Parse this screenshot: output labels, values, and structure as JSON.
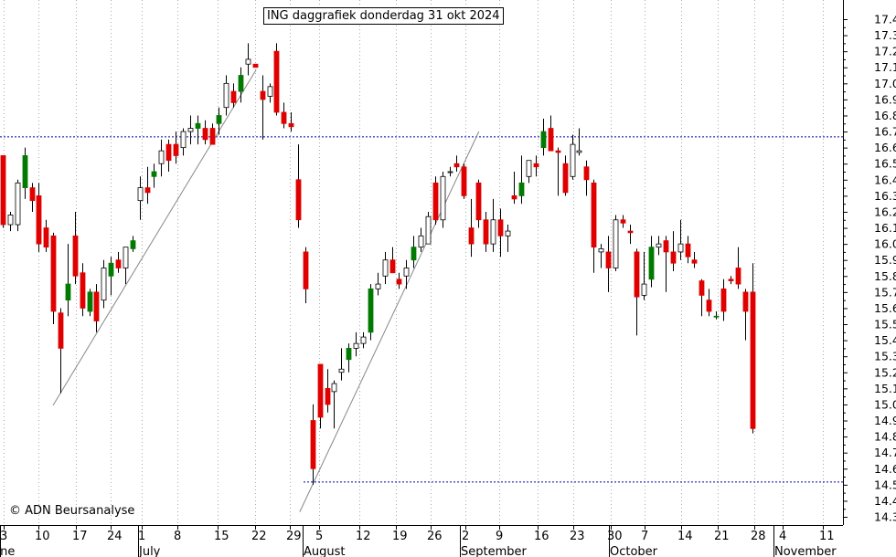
{
  "chart_data": {
    "type": "candlestick",
    "title": "ING daggrafiek donderdag 31 okt 2024",
    "copyright": "© ADN Beursanalyse",
    "ylim": [
      14.25,
      17.5
    ],
    "y_ticks": [
      "17.4",
      "17.3",
      "17.2",
      "17.1",
      "17.0",
      "16.9",
      "16.8",
      "16.7",
      "16.6",
      "16.5",
      "16.4",
      "16.3",
      "16.2",
      "16.1",
      "16.0",
      "15.9",
      "15.8",
      "15.7",
      "15.6",
      "15.5",
      "15.4",
      "15.3",
      "15.2",
      "15.1",
      "15.0",
      "14.9",
      "14.8",
      "14.7",
      "14.6",
      "14.5",
      "14.4",
      "14.3"
    ],
    "x_ticks": [
      "3",
      "10",
      "17",
      "24",
      "1",
      "8",
      "15",
      "22",
      "29",
      "5",
      "12",
      "19",
      "26",
      "2",
      "9",
      "16",
      "23",
      "30",
      "7",
      "14",
      "21",
      "28",
      "4",
      "11"
    ],
    "months": [
      "June",
      "July",
      "August",
      "September",
      "October",
      "November"
    ],
    "colors": {
      "up": "#007a00",
      "down": "#e00000",
      "hollow": "#ffffff",
      "support": "#0000aa",
      "trend": "#888888",
      "grid": "#aaaaaa"
    },
    "horizontal_lines": [
      16.67,
      14.52
    ],
    "candles": [
      {
        "o": 16.55,
        "h": 16.55,
        "l": 16.1,
        "c": 16.12
      },
      {
        "o": 16.12,
        "h": 16.2,
        "l": 16.08,
        "c": 16.18
      },
      {
        "o": 16.12,
        "h": 16.4,
        "l": 16.08,
        "c": 16.38
      },
      {
        "o": 16.35,
        "h": 16.6,
        "l": 16.28,
        "c": 16.55
      },
      {
        "o": 16.35,
        "h": 16.38,
        "l": 16.2,
        "c": 16.27
      },
      {
        "o": 16.3,
        "h": 16.38,
        "l": 15.95,
        "c": 16.0
      },
      {
        "o": 16.1,
        "h": 16.15,
        "l": 15.95,
        "c": 15.98
      },
      {
        "o": 16.05,
        "h": 16.07,
        "l": 15.5,
        "c": 15.58
      },
      {
        "o": 15.57,
        "h": 15.6,
        "l": 15.07,
        "c": 15.35
      },
      {
        "o": 15.65,
        "h": 16.0,
        "l": 15.55,
        "c": 15.75
      },
      {
        "o": 16.05,
        "h": 16.2,
        "l": 15.75,
        "c": 15.8
      },
      {
        "o": 15.82,
        "h": 15.88,
        "l": 15.55,
        "c": 15.6
      },
      {
        "o": 15.58,
        "h": 15.72,
        "l": 15.55,
        "c": 15.7
      },
      {
        "o": 15.7,
        "h": 15.75,
        "l": 15.45,
        "c": 15.52
      },
      {
        "o": 15.65,
        "h": 15.9,
        "l": 15.6,
        "c": 15.85
      },
      {
        "o": 15.8,
        "h": 15.92,
        "l": 15.68,
        "c": 15.88
      },
      {
        "o": 15.9,
        "h": 15.95,
        "l": 15.82,
        "c": 15.85
      },
      {
        "o": 15.85,
        "h": 15.98,
        "l": 15.75,
        "c": 15.98
      },
      {
        "o": 15.97,
        "h": 16.05,
        "l": 15.95,
        "c": 16.02
      },
      {
        "o": 16.27,
        "h": 16.42,
        "l": 16.15,
        "c": 16.35
      },
      {
        "o": 16.35,
        "h": 16.48,
        "l": 16.25,
        "c": 16.32
      },
      {
        "o": 16.42,
        "h": 16.5,
        "l": 16.35,
        "c": 16.45
      },
      {
        "o": 16.5,
        "h": 16.65,
        "l": 16.42,
        "c": 16.58
      },
      {
        "o": 16.62,
        "h": 16.65,
        "l": 16.45,
        "c": 16.52
      },
      {
        "o": 16.62,
        "h": 16.7,
        "l": 16.5,
        "c": 16.55
      },
      {
        "o": 16.6,
        "h": 16.72,
        "l": 16.55,
        "c": 16.7
      },
      {
        "o": 16.7,
        "h": 16.8,
        "l": 16.62,
        "c": 16.72
      },
      {
        "o": 16.72,
        "h": 16.8,
        "l": 16.62,
        "c": 16.75
      },
      {
        "o": 16.72,
        "h": 16.77,
        "l": 16.62,
        "c": 16.65
      },
      {
        "o": 16.72,
        "h": 16.75,
        "l": 16.62,
        "c": 16.62
      },
      {
        "o": 16.75,
        "h": 16.85,
        "l": 16.68,
        "c": 16.8
      },
      {
        "o": 16.85,
        "h": 17.05,
        "l": 16.8,
        "c": 17.0
      },
      {
        "o": 16.95,
        "h": 17.0,
        "l": 16.85,
        "c": 16.88
      },
      {
        "o": 16.95,
        "h": 17.1,
        "l": 16.88,
        "c": 17.05
      },
      {
        "o": 17.12,
        "h": 17.25,
        "l": 17.05,
        "c": 17.15
      },
      {
        "o": 17.12,
        "h": 17.12,
        "l": 17.1,
        "c": 17.1
      },
      {
        "o": 16.95,
        "h": 17.05,
        "l": 16.65,
        "c": 16.9
      },
      {
        "o": 16.92,
        "h": 17.0,
        "l": 16.88,
        "c": 16.98
      },
      {
        "o": 17.2,
        "h": 17.25,
        "l": 16.8,
        "c": 16.82
      },
      {
        "o": 16.82,
        "h": 16.88,
        "l": 16.72,
        "c": 16.75
      },
      {
        "o": 16.75,
        "h": 16.82,
        "l": 16.7,
        "c": 16.73
      },
      {
        "o": 16.4,
        "h": 16.62,
        "l": 16.1,
        "c": 16.15
      },
      {
        "o": 15.95,
        "h": 15.98,
        "l": 15.63,
        "c": 15.72
      },
      {
        "o": 14.9,
        "h": 15.0,
        "l": 14.5,
        "c": 14.6
      },
      {
        "o": 15.25,
        "h": 15.25,
        "l": 14.85,
        "c": 14.92
      },
      {
        "o": 15.1,
        "h": 15.22,
        "l": 14.95,
        "c": 15.0
      },
      {
        "o": 15.08,
        "h": 15.15,
        "l": 14.85,
        "c": 15.13
      },
      {
        "o": 15.2,
        "h": 15.35,
        "l": 15.15,
        "c": 15.22
      },
      {
        "o": 15.28,
        "h": 15.38,
        "l": 15.2,
        "c": 15.35
      },
      {
        "o": 15.35,
        "h": 15.45,
        "l": 15.3,
        "c": 15.38
      },
      {
        "o": 15.38,
        "h": 15.45,
        "l": 15.35,
        "c": 15.42
      },
      {
        "o": 15.45,
        "h": 15.75,
        "l": 15.4,
        "c": 15.72
      },
      {
        "o": 15.72,
        "h": 15.82,
        "l": 15.68,
        "c": 15.75
      },
      {
        "o": 15.8,
        "h": 15.95,
        "l": 15.75,
        "c": 15.9
      },
      {
        "o": 15.9,
        "h": 15.98,
        "l": 15.85,
        "c": 15.82
      },
      {
        "o": 15.78,
        "h": 15.82,
        "l": 15.72,
        "c": 15.75
      },
      {
        "o": 15.8,
        "h": 15.9,
        "l": 15.72,
        "c": 15.85
      },
      {
        "o": 15.9,
        "h": 16.05,
        "l": 15.85,
        "c": 15.98
      },
      {
        "o": 15.98,
        "h": 16.1,
        "l": 15.95,
        "c": 16.05
      },
      {
        "o": 16.0,
        "h": 16.2,
        "l": 16.0,
        "c": 16.17
      },
      {
        "o": 16.38,
        "h": 16.42,
        "l": 16.12,
        "c": 16.15
      },
      {
        "o": 16.15,
        "h": 16.45,
        "l": 16.1,
        "c": 16.42
      },
      {
        "o": 16.45,
        "h": 16.48,
        "l": 16.42,
        "c": 16.45
      },
      {
        "o": 16.5,
        "h": 16.55,
        "l": 16.45,
        "c": 16.48
      },
      {
        "o": 16.48,
        "h": 16.5,
        "l": 16.28,
        "c": 16.3
      },
      {
        "o": 16.1,
        "h": 16.28,
        "l": 15.92,
        "c": 16.0
      },
      {
        "o": 16.38,
        "h": 16.4,
        "l": 16.1,
        "c": 16.15
      },
      {
        "o": 16.15,
        "h": 16.2,
        "l": 15.95,
        "c": 16.0
      },
      {
        "o": 16.0,
        "h": 16.28,
        "l": 15.95,
        "c": 16.15
      },
      {
        "o": 16.15,
        "h": 16.22,
        "l": 15.92,
        "c": 16.05
      },
      {
        "o": 16.05,
        "h": 16.12,
        "l": 15.95,
        "c": 16.08
      },
      {
        "o": 16.3,
        "h": 16.45,
        "l": 16.25,
        "c": 16.28
      },
      {
        "o": 16.3,
        "h": 16.55,
        "l": 16.25,
        "c": 16.38
      },
      {
        "o": 16.42,
        "h": 16.5,
        "l": 16.38,
        "c": 16.52
      },
      {
        "o": 16.5,
        "h": 16.55,
        "l": 16.42,
        "c": 16.48
      },
      {
        "o": 16.6,
        "h": 16.78,
        "l": 16.55,
        "c": 16.7
      },
      {
        "o": 16.72,
        "h": 16.8,
        "l": 16.6,
        "c": 16.58
      },
      {
        "o": 16.58,
        "h": 16.6,
        "l": 16.3,
        "c": 16.57
      },
      {
        "o": 16.5,
        "h": 16.55,
        "l": 16.3,
        "c": 16.32
      },
      {
        "o": 16.42,
        "h": 16.68,
        "l": 16.4,
        "c": 16.62
      },
      {
        "o": 16.57,
        "h": 16.72,
        "l": 16.55,
        "c": 16.58
      },
      {
        "o": 16.48,
        "h": 16.52,
        "l": 16.3,
        "c": 16.4
      },
      {
        "o": 16.38,
        "h": 16.4,
        "l": 15.82,
        "c": 15.98
      },
      {
        "o": 15.95,
        "h": 16.0,
        "l": 15.85,
        "c": 15.97
      },
      {
        "o": 15.95,
        "h": 16.05,
        "l": 15.7,
        "c": 15.85
      },
      {
        "o": 15.85,
        "h": 16.18,
        "l": 15.83,
        "c": 16.15
      },
      {
        "o": 16.15,
        "h": 16.18,
        "l": 16.1,
        "c": 16.13
      },
      {
        "o": 16.08,
        "h": 16.12,
        "l": 16.0,
        "c": 16.07
      },
      {
        "o": 15.95,
        "h": 15.97,
        "l": 15.43,
        "c": 15.67
      },
      {
        "o": 15.68,
        "h": 15.95,
        "l": 15.65,
        "c": 15.75
      },
      {
        "o": 15.78,
        "h": 16.05,
        "l": 15.73,
        "c": 15.98
      },
      {
        "o": 15.98,
        "h": 16.05,
        "l": 15.93,
        "c": 16.0
      },
      {
        "o": 16.02,
        "h": 16.05,
        "l": 15.7,
        "c": 15.95
      },
      {
        "o": 15.95,
        "h": 16.08,
        "l": 15.83,
        "c": 15.88
      },
      {
        "o": 15.95,
        "h": 16.15,
        "l": 15.9,
        "c": 16.0
      },
      {
        "o": 16.0,
        "h": 16.05,
        "l": 15.88,
        "c": 15.92
      },
      {
        "o": 15.9,
        "h": 15.95,
        "l": 15.85,
        "c": 15.88
      },
      {
        "o": 15.77,
        "h": 15.78,
        "l": 15.55,
        "c": 15.68
      },
      {
        "o": 15.65,
        "h": 15.72,
        "l": 15.55,
        "c": 15.58
      },
      {
        "o": 15.55,
        "h": 15.58,
        "l": 15.53,
        "c": 15.55
      },
      {
        "o": 15.72,
        "h": 15.78,
        "l": 15.52,
        "c": 15.58
      },
      {
        "o": 15.78,
        "h": 15.8,
        "l": 15.75,
        "c": 15.77
      },
      {
        "o": 15.85,
        "h": 15.98,
        "l": 15.72,
        "c": 15.75
      },
      {
        "o": 15.7,
        "h": 15.72,
        "l": 15.4,
        "c": 15.58
      },
      {
        "o": 15.7,
        "h": 15.88,
        "l": 14.82,
        "c": 14.85
      }
    ]
  }
}
